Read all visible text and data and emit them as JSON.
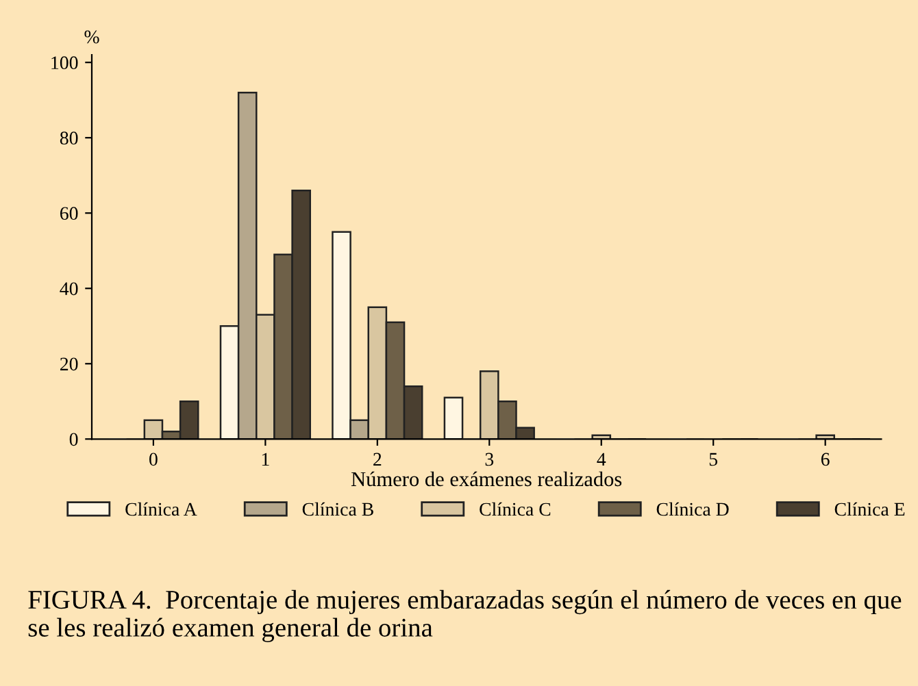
{
  "chart_data": {
    "type": "bar",
    "title": "FIGURA 4.  Porcentaje de mujeres embarazadas según el número de veces en que se les realizó examen general de orina",
    "xlabel": "Número de exámenes realizados",
    "ylabel": "%",
    "categories": [
      "0",
      "1",
      "2",
      "3",
      "4",
      "5",
      "6"
    ],
    "series": [
      {
        "name": "Clínica A",
        "color": "#fff6e2",
        "values": [
          0,
          30,
          55,
          11,
          0,
          0,
          0
        ]
      },
      {
        "name": "Clínica B",
        "color": "#b5a78c",
        "values": [
          0,
          92,
          5,
          0,
          0,
          0,
          0
        ]
      },
      {
        "name": "Clínica C",
        "color": "#d9c6a0",
        "values": [
          5,
          33,
          35,
          18,
          1,
          0,
          1
        ]
      },
      {
        "name": "Clínica D",
        "color": "#6e6048",
        "values": [
          2,
          49,
          31,
          10,
          0,
          0,
          0
        ]
      },
      {
        "name": "Clínica E",
        "color": "#4a3f30",
        "values": [
          10,
          66,
          14,
          3,
          0,
          0,
          0
        ]
      }
    ],
    "ylim": [
      0,
      102
    ],
    "yticks": [
      0,
      20,
      40,
      60,
      80,
      100
    ],
    "grid": false,
    "legend": "bottom"
  }
}
